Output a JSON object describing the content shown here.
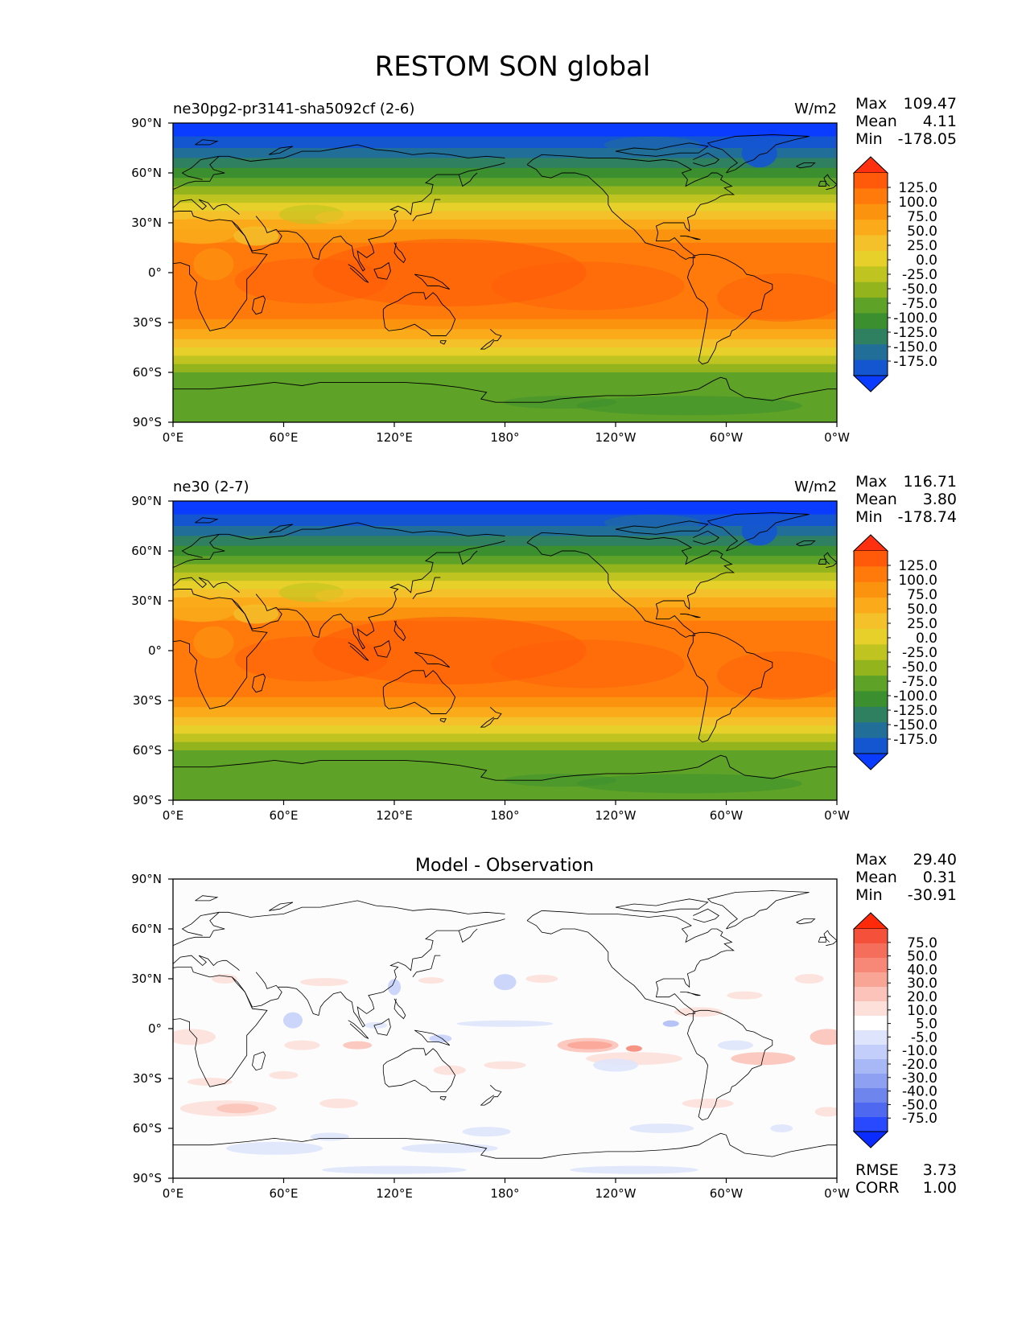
{
  "figure": {
    "title": "RESTOM SON global"
  },
  "axes": {
    "lat_ticks": [
      "90°N",
      "60°N",
      "30°N",
      "0°",
      "30°S",
      "60°S",
      "90°S"
    ],
    "lon_ticks": [
      "0°E",
      "60°E",
      "120°E",
      "180°",
      "120°W",
      "60°W",
      "0°W"
    ]
  },
  "panels": [
    {
      "id": "test",
      "left_title": "ne30pg2-pr3141-sha5092cf (2-6)",
      "center_title": "",
      "units": "W/m2",
      "stats": [
        {
          "label": "Max",
          "value": "109.47"
        },
        {
          "label": "Mean",
          "value": "4.11"
        },
        {
          "label": "Min",
          "value": "-178.05"
        }
      ],
      "colorbar": {
        "labels": [
          "125.0",
          "100.0",
          "75.0",
          "50.0",
          "25.0",
          "0.0",
          "-25.0",
          "-50.0",
          "-75.0",
          "-100.0",
          "-125.0",
          "-150.0",
          "-175.0"
        ],
        "colors": [
          "#ff3010",
          "#ff5a0a",
          "#ff7a0a",
          "#fb930f",
          "#fbab1a",
          "#f4c12a",
          "#e7d02a",
          "#c0c420",
          "#94b41e",
          "#5fa228",
          "#3b8f2e",
          "#2f8060",
          "#216e98",
          "#1455d0",
          "#0a3cff"
        ]
      }
    },
    {
      "id": "reference",
      "left_title": "ne30 (2-7)",
      "center_title": "",
      "units": "W/m2",
      "stats": [
        {
          "label": "Max",
          "value": "116.71"
        },
        {
          "label": "Mean",
          "value": "3.80"
        },
        {
          "label": "Min",
          "value": "-178.74"
        }
      ],
      "colorbar": {
        "labels": [
          "125.0",
          "100.0",
          "75.0",
          "50.0",
          "25.0",
          "0.0",
          "-25.0",
          "-50.0",
          "-75.0",
          "-100.0",
          "-125.0",
          "-150.0",
          "-175.0"
        ],
        "colors": [
          "#ff3010",
          "#ff5a0a",
          "#ff7a0a",
          "#fb930f",
          "#fbab1a",
          "#f4c12a",
          "#e7d02a",
          "#c0c420",
          "#94b41e",
          "#5fa228",
          "#3b8f2e",
          "#2f8060",
          "#216e98",
          "#1455d0",
          "#0a3cff"
        ]
      }
    },
    {
      "id": "diff",
      "left_title": "",
      "center_title": "Model - Observation",
      "units": "",
      "stats": [
        {
          "label": "Max",
          "value": "29.40"
        },
        {
          "label": "Mean",
          "value": "0.31"
        },
        {
          "label": "Min",
          "value": "-30.91"
        }
      ],
      "colorbar": {
        "labels": [
          "75.0",
          "50.0",
          "40.0",
          "30.0",
          "20.0",
          "10.0",
          "5.0",
          "-5.0",
          "-10.0",
          "-20.0",
          "-30.0",
          "-40.0",
          "-50.0",
          "-75.0"
        ],
        "colors": [
          "#ff2a0a",
          "#f5503a",
          "#f56e5c",
          "#f78877",
          "#f9a596",
          "#fbc3b9",
          "#fde0da",
          "#ffffff",
          "#dde4fb",
          "#c3cffa",
          "#a8b8f6",
          "#8ea0f2",
          "#6f85ee",
          "#4e68f0",
          "#2849ff",
          "#0a2cff"
        ]
      },
      "extra_stats": [
        {
          "label": "RMSE",
          "value": "3.73"
        },
        {
          "label": "CORR",
          "value": "1.00"
        }
      ]
    }
  ]
}
